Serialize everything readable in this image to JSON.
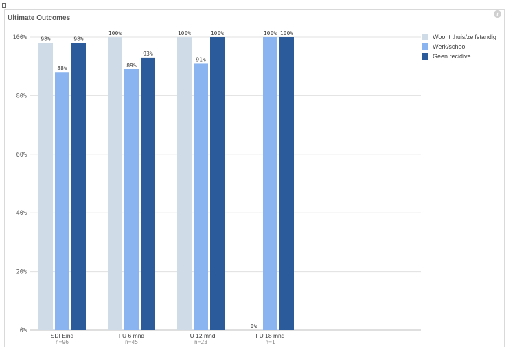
{
  "title": "Ultimate Outcomes",
  "info_icon": "info-icon",
  "chart_data": {
    "type": "bar",
    "title": "Ultimate Outcomes",
    "categories": [
      "SDI Eind",
      "FU 6 mnd",
      "FU 12 mnd",
      "FU 18 mnd"
    ],
    "subcategories": [
      "n=96",
      "n=45",
      "n=23",
      "n=1"
    ],
    "series": [
      {
        "name": "Woont thuis/zelfstandig",
        "color": "#d0dbe8",
        "values": [
          98,
          100,
          100,
          0
        ],
        "labels": [
          "98%",
          "100%",
          "100%",
          "0%"
        ]
      },
      {
        "name": "Werk/school",
        "color": "#8ab4f0",
        "values": [
          88,
          89,
          91,
          100
        ],
        "labels": [
          "88%",
          "89%",
          "91%",
          "100%"
        ]
      },
      {
        "name": "Geen recidive",
        "color": "#2b5b9b",
        "values": [
          98,
          93,
          100,
          100
        ],
        "labels": [
          "98%",
          "93%",
          "100%",
          "100%"
        ]
      }
    ],
    "yticks": [
      "0%",
      "20%",
      "40%",
      "60%",
      "80%",
      "100%"
    ],
    "ylim": [
      0,
      100
    ],
    "grid": true,
    "legend": "right"
  }
}
